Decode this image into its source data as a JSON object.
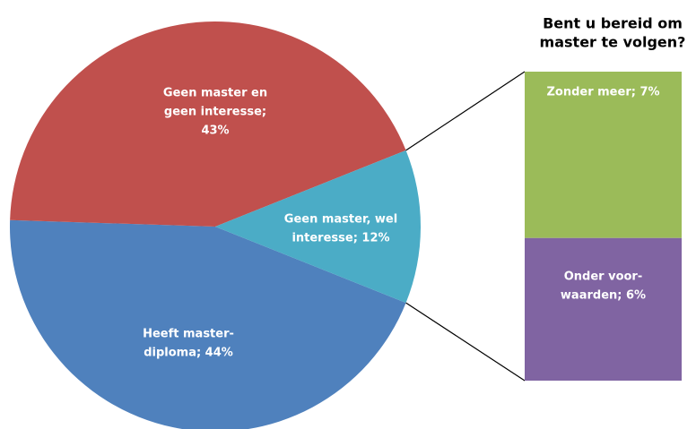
{
  "chart_data": {
    "type": "pie-of-bar",
    "title": [
      "Bent u bereid om",
      "master te volgen?"
    ],
    "pie": {
      "values": [
        44,
        43,
        12
      ],
      "colors": [
        "#4f81bd",
        "#c0504d",
        "#4bacc6"
      ],
      "labels": [
        [
          "Heeft master-",
          "diploma; 44%"
        ],
        [
          "Geen master en",
          "geen interesse;",
          "43%"
        ],
        [
          "Geen master, wel",
          "interesse; 12%"
        ]
      ]
    },
    "bar": {
      "values": [
        7,
        6
      ],
      "colors": [
        "#9bbb59",
        "#8064a2"
      ],
      "labels": [
        [
          "Zonder meer; 7%"
        ],
        [
          "Onder voor-",
          "waarden; 6%"
        ]
      ]
    }
  }
}
